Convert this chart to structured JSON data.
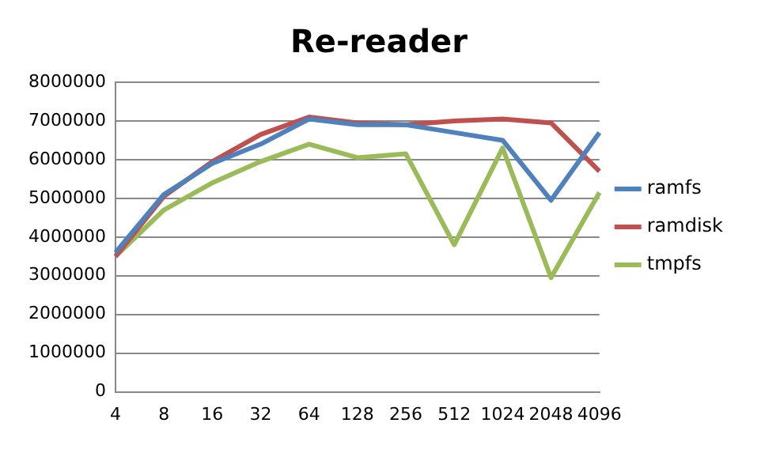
{
  "chart_data": {
    "type": "line",
    "title": "Re-reader",
    "categories": [
      "4",
      "8",
      "16",
      "32",
      "64",
      "128",
      "256",
      "512",
      "1024",
      "2048",
      "4096"
    ],
    "series": [
      {
        "name": "ramfs",
        "color": "#4f81bd",
        "values": [
          3600000,
          5100000,
          5900000,
          6400000,
          7050000,
          6900000,
          6900000,
          6700000,
          6500000,
          4950000,
          6700000
        ]
      },
      {
        "name": "ramdisk",
        "color": "#c0504d",
        "values": [
          3500000,
          5050000,
          5950000,
          6650000,
          7100000,
          6950000,
          6900000,
          7000000,
          7050000,
          6950000,
          5700000
        ]
      },
      {
        "name": "tmpfs",
        "color": "#9bbb59",
        "values": [
          3500000,
          4700000,
          5400000,
          5950000,
          6400000,
          6050000,
          6150000,
          3800000,
          6300000,
          2950000,
          5150000
        ]
      }
    ],
    "ylim": [
      0,
      8000000
    ],
    "yticks": [
      0,
      1000000,
      2000000,
      3000000,
      4000000,
      5000000,
      6000000,
      7000000,
      8000000
    ],
    "grid": "y",
    "legend": "right",
    "marker": "none",
    "line_style": "solid"
  }
}
